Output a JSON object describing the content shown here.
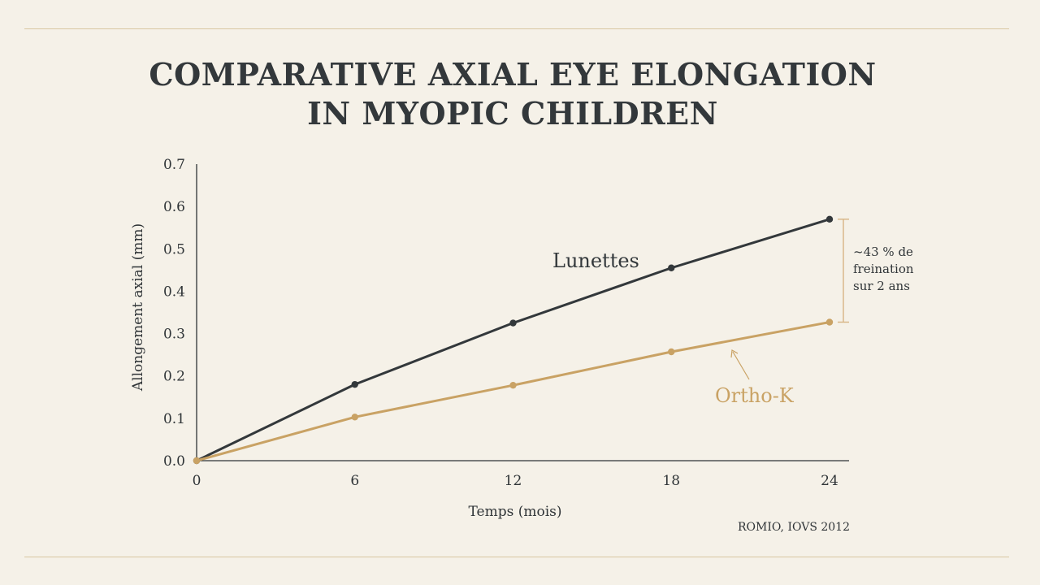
{
  "chart_data": {
    "type": "line",
    "title_lines": [
      "COMPARATIVE AXIAL EYE ELONGATION",
      "IN MYOPIC CHILDREN"
    ],
    "xlabel": "Temps (mois)",
    "ylabel": "Allongement axial (mm)",
    "x": [
      0,
      6,
      12,
      18,
      24
    ],
    "xlim": [
      0,
      24
    ],
    "ylim": [
      0,
      0.7
    ],
    "x_ticks": [
      "0",
      "6",
      "12",
      "18",
      "24"
    ],
    "y_ticks": [
      "0.0",
      "0.1",
      "0.2",
      "0.3",
      "0.4",
      "0.5",
      "0.6",
      "0.7"
    ],
    "grid": false,
    "series": [
      {
        "name": "Lunettes",
        "color": "#33383b",
        "values": [
          0,
          0.18,
          0.325,
          0.455,
          0.57
        ]
      },
      {
        "name": "Ortho-K",
        "color": "#c9a264",
        "values": [
          0,
          0.103,
          0.178,
          0.257,
          0.327
        ]
      }
    ],
    "annotation_lines": [
      "~43 % de",
      "freination",
      "sur 2 ans"
    ],
    "source": "ROMIO, IOVS 2012"
  },
  "colors": {
    "background": "#f5f1e8",
    "rule": "#d9c7a1",
    "bracket": "#d8b88a"
  }
}
